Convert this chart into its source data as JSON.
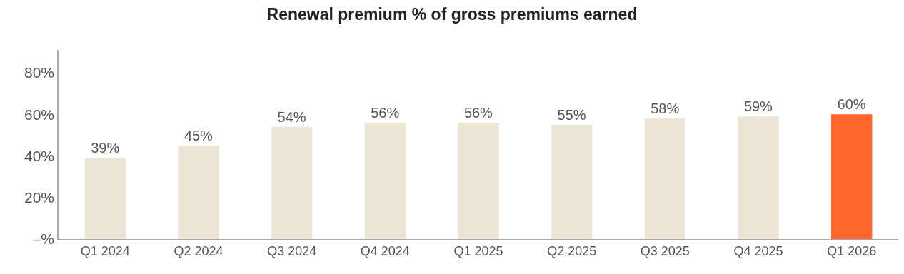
{
  "chart_data": {
    "type": "bar",
    "title": "Renewal premium % of gross premiums earned",
    "categories": [
      "Q1 2024",
      "Q2 2024",
      "Q3 2024",
      "Q4 2024",
      "Q1 2025",
      "Q2 2025",
      "Q3 2025",
      "Q4 2025",
      "Q1 2026"
    ],
    "values": [
      39,
      45,
      54,
      56,
      56,
      55,
      58,
      59,
      60
    ],
    "value_labels": [
      "39%",
      "45%",
      "54%",
      "56%",
      "56%",
      "55%",
      "58%",
      "59%",
      "60%"
    ],
    "colors": [
      "#ede4d8",
      "#ede4d8",
      "#ede4d8",
      "#ede4d8",
      "#ede4d8",
      "#ede4d8",
      "#ede4d8",
      "#ede4d8",
      "#ff672b"
    ],
    "ylim": [
      0,
      91
    ],
    "yticks": [
      {
        "value": 0,
        "label": "–%"
      },
      {
        "value": 20,
        "label": "20%"
      },
      {
        "value": 40,
        "label": "40%"
      },
      {
        "value": 60,
        "label": "60%"
      },
      {
        "value": 80,
        "label": "80%"
      }
    ]
  }
}
